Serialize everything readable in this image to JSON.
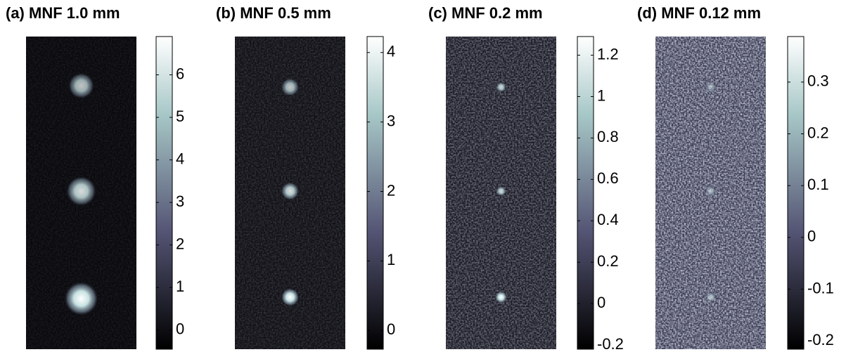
{
  "chart_data": [
    {
      "type": "image",
      "title": "(a) MNF 1.0 mm",
      "colormap": "bone",
      "ylim": [
        -0.45,
        6.9
      ],
      "yticks": [
        0,
        1,
        2,
        3,
        4,
        5,
        6
      ]
    },
    {
      "type": "image",
      "title": "(b) MNF 0.5 mm",
      "colormap": "bone",
      "ylim": [
        -0.27,
        4.23
      ],
      "yticks": [
        0,
        1,
        2,
        3,
        4
      ]
    },
    {
      "type": "image",
      "title": "(c) MNF 0.2 mm",
      "colormap": "bone",
      "ylim": [
        -0.22,
        1.29
      ],
      "yticks": [
        -0.2,
        0,
        0.2,
        0.4,
        0.6,
        0.8,
        1,
        1.2
      ]
    },
    {
      "type": "image",
      "title": "(d) MNF 0.12 mm",
      "colormap": "bone",
      "ylim": [
        -0.216,
        0.388
      ],
      "yticks": [
        -0.2,
        -0.1,
        0,
        0.1,
        0.2,
        0.3
      ]
    }
  ]
}
